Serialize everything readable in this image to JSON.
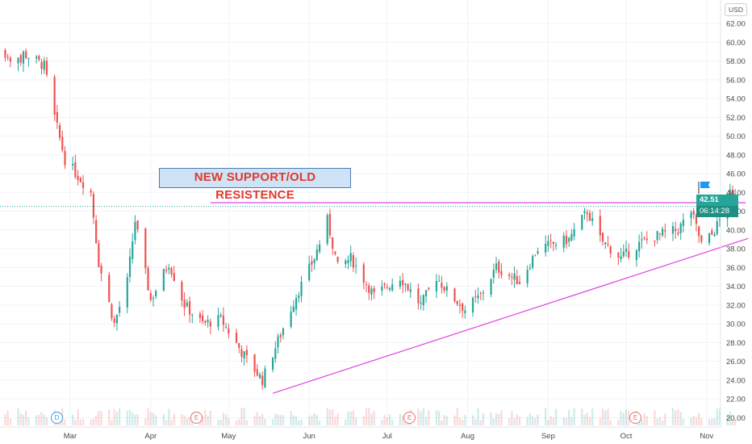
{
  "currency_label": "USD",
  "callout": "NEW SUPPORT/OLD RESISTENCE",
  "last_price_label": "42.51",
  "countdown_label": "06:14:28",
  "events": [
    {
      "letter": "D",
      "date": "Feb 21",
      "kind": "dividend"
    },
    {
      "letter": "E",
      "date": "Apr 29",
      "kind": "earnings"
    },
    {
      "letter": "E",
      "date": "Jul 29",
      "kind": "earnings"
    },
    {
      "letter": "E",
      "date": "Oct 28",
      "kind": "earnings"
    }
  ],
  "colors": {
    "up": "#26a69a",
    "down": "#ef5350",
    "trendline": "#e040e0",
    "price_tag": "#26a69a",
    "flag": "#2196f3"
  },
  "chart_data": {
    "type": "candlestick",
    "title": "",
    "xlabel": "",
    "ylabel": "",
    "ylim": [
      19,
      64.5
    ],
    "y_ticks": [
      20,
      22,
      24,
      26,
      28,
      30,
      32,
      34,
      36,
      38,
      40,
      42,
      44,
      46,
      48,
      50,
      52,
      54,
      56,
      58,
      60,
      62
    ],
    "x_ticks": [
      "Mar",
      "Apr",
      "May",
      "Jun",
      "Jul",
      "Aug",
      "Sep",
      "Oct",
      "Nov"
    ],
    "key_points": [
      {
        "date": "Feb 12",
        "close": 58.8
      },
      {
        "date": "Feb 20",
        "close": 57.5
      },
      {
        "date": "Feb 24",
        "close": 52.0
      },
      {
        "date": "Feb 28",
        "close": 47.5
      },
      {
        "date": "Mar 09",
        "close": 44.0
      },
      {
        "date": "Mar 12",
        "close": 36.5
      },
      {
        "date": "Mar 18",
        "close": 30.0
      },
      {
        "date": "Mar 23",
        "close": 34.5
      },
      {
        "date": "Mar 26",
        "close": 41.0
      },
      {
        "date": "Apr 01",
        "close": 32.5
      },
      {
        "date": "Apr 08",
        "close": 36.5
      },
      {
        "date": "Apr 14",
        "close": 32.0
      },
      {
        "date": "Apr 21",
        "close": 30.0
      },
      {
        "date": "Apr 28",
        "close": 30.5
      },
      {
        "date": "May 06",
        "close": 27.0
      },
      {
        "date": "May 14",
        "close": 24.0
      },
      {
        "date": "May 19",
        "close": 27.5
      },
      {
        "date": "May 27",
        "close": 33.0
      },
      {
        "date": "Jun 03",
        "close": 37.0
      },
      {
        "date": "Jun 08",
        "close": 41.0
      },
      {
        "date": "Jun 12",
        "close": 36.0
      },
      {
        "date": "Jun 17",
        "close": 37.0
      },
      {
        "date": "Jun 26",
        "close": 33.0
      },
      {
        "date": "Jul 06",
        "close": 35.0
      },
      {
        "date": "Jul 14",
        "close": 32.0
      },
      {
        "date": "Jul 20",
        "close": 35.0
      },
      {
        "date": "Jul 24",
        "close": 33.5
      },
      {
        "date": "Jul 31",
        "close": 31.5
      },
      {
        "date": "Aug 06",
        "close": 33.0
      },
      {
        "date": "Aug 12",
        "close": 36.0
      },
      {
        "date": "Aug 21",
        "close": 34.5
      },
      {
        "date": "Aug 28",
        "close": 38.0
      },
      {
        "date": "Sep 03",
        "close": 38.5
      },
      {
        "date": "Sep 09",
        "close": 39.0
      },
      {
        "date": "Sep 16",
        "close": 42.0
      },
      {
        "date": "Sep 21",
        "close": 39.0
      },
      {
        "date": "Sep 29",
        "close": 37.0
      },
      {
        "date": "Oct 06",
        "close": 38.5
      },
      {
        "date": "Oct 14",
        "close": 39.5
      },
      {
        "date": "Oct 21",
        "close": 40.0
      },
      {
        "date": "Oct 26",
        "close": 42.0
      },
      {
        "date": "Oct 30",
        "close": 38.5
      },
      {
        "date": "Nov 03",
        "close": 39.5
      },
      {
        "date": "Nov 06",
        "close": 41.0
      },
      {
        "date": "Nov 09",
        "close": 44.0
      },
      {
        "date": "Nov 11",
        "close": 43.5
      },
      {
        "date": "Nov 12",
        "close": 42.51
      }
    ],
    "annotations": [
      {
        "type": "horizontal-line",
        "label": "NEW SUPPORT/OLD RESISTENCE",
        "start_date": "Apr 24",
        "end_date": "Nov 16",
        "value": 42.9
      },
      {
        "type": "trendline",
        "start": {
          "date": "May 18",
          "value": 22.6
        },
        "end": {
          "date": "Nov 17",
          "value": 39.1
        }
      }
    ],
    "grid": true,
    "legend": "none"
  }
}
